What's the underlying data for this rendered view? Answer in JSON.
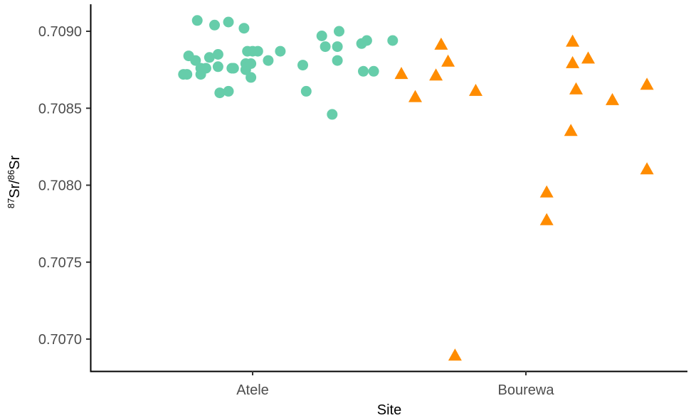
{
  "chart_data": {
    "type": "scatter",
    "xlabel": "Site",
    "ylabel": {
      "pre1": "87",
      "t1": "Sr/",
      "pre2": "86",
      "t2": "Sr"
    },
    "categories": [
      "Atele",
      "Bourewa"
    ],
    "ylim": [
      0.70683,
      0.70918
    ],
    "yticks": [
      "0.7070",
      "0.7075",
      "0.7080",
      "0.7085",
      "0.7090"
    ],
    "grid": false,
    "series": [
      {
        "category": "Atele",
        "marker": "circle",
        "color": "#66CDAA",
        "points": [
          {
            "x": -0.4,
            "y": 0.70872
          },
          {
            "x": -0.38,
            "y": 0.70872
          },
          {
            "x": -0.37,
            "y": 0.70884
          },
          {
            "x": -0.33,
            "y": 0.70881
          },
          {
            "x": -0.32,
            "y": 0.70907
          },
          {
            "x": -0.3,
            "y": 0.70872
          },
          {
            "x": -0.3,
            "y": 0.70876
          },
          {
            "x": -0.27,
            "y": 0.70876
          },
          {
            "x": -0.25,
            "y": 0.70883
          },
          {
            "x": -0.22,
            "y": 0.70904
          },
          {
            "x": -0.2,
            "y": 0.70877
          },
          {
            "x": -0.2,
            "y": 0.70885
          },
          {
            "x": -0.19,
            "y": 0.7086
          },
          {
            "x": -0.14,
            "y": 0.70906
          },
          {
            "x": -0.14,
            "y": 0.70861
          },
          {
            "x": -0.12,
            "y": 0.70876
          },
          {
            "x": -0.11,
            "y": 0.70876
          },
          {
            "x": -0.05,
            "y": 0.70902
          },
          {
            "x": -0.04,
            "y": 0.70875
          },
          {
            "x": -0.04,
            "y": 0.70879
          },
          {
            "x": -0.03,
            "y": 0.70887
          },
          {
            "x": -0.01,
            "y": 0.7087
          },
          {
            "x": -0.01,
            "y": 0.70879
          },
          {
            "x": 0.0,
            "y": 0.70887
          },
          {
            "x": 0.03,
            "y": 0.70887
          },
          {
            "x": 0.09,
            "y": 0.70881
          },
          {
            "x": 0.16,
            "y": 0.70887
          },
          {
            "x": 0.29,
            "y": 0.70878
          },
          {
            "x": 0.31,
            "y": 0.70861
          },
          {
            "x": 0.4,
            "y": 0.70897
          },
          {
            "x": 0.42,
            "y": 0.7089
          },
          {
            "x": 0.46,
            "y": 0.70846
          },
          {
            "x": 0.49,
            "y": 0.7089
          },
          {
            "x": 0.49,
            "y": 0.70881
          },
          {
            "x": 0.5,
            "y": 0.709
          },
          {
            "x": 0.63,
            "y": 0.70892
          },
          {
            "x": 0.64,
            "y": 0.70874
          },
          {
            "x": 0.66,
            "y": 0.70894
          },
          {
            "x": 0.7,
            "y": 0.70874
          },
          {
            "x": 0.81,
            "y": 0.70894
          }
        ]
      },
      {
        "category": "Bourewa",
        "marker": "triangle",
        "color": "#FF8C00",
        "points": [
          {
            "x": -0.72,
            "y": 0.70872
          },
          {
            "x": -0.64,
            "y": 0.70857
          },
          {
            "x": -0.52,
            "y": 0.70871
          },
          {
            "x": -0.49,
            "y": 0.70891
          },
          {
            "x": -0.45,
            "y": 0.7088
          },
          {
            "x": -0.41,
            "y": 0.70689
          },
          {
            "x": -0.29,
            "y": 0.70861
          },
          {
            "x": 0.12,
            "y": 0.70795
          },
          {
            "x": 0.12,
            "y": 0.70777
          },
          {
            "x": 0.26,
            "y": 0.70835
          },
          {
            "x": 0.27,
            "y": 0.70893
          },
          {
            "x": 0.27,
            "y": 0.70879
          },
          {
            "x": 0.29,
            "y": 0.70862
          },
          {
            "x": 0.36,
            "y": 0.70882
          },
          {
            "x": 0.5,
            "y": 0.70855
          },
          {
            "x": 0.7,
            "y": 0.7081
          },
          {
            "x": 0.7,
            "y": 0.70865
          }
        ]
      }
    ]
  }
}
